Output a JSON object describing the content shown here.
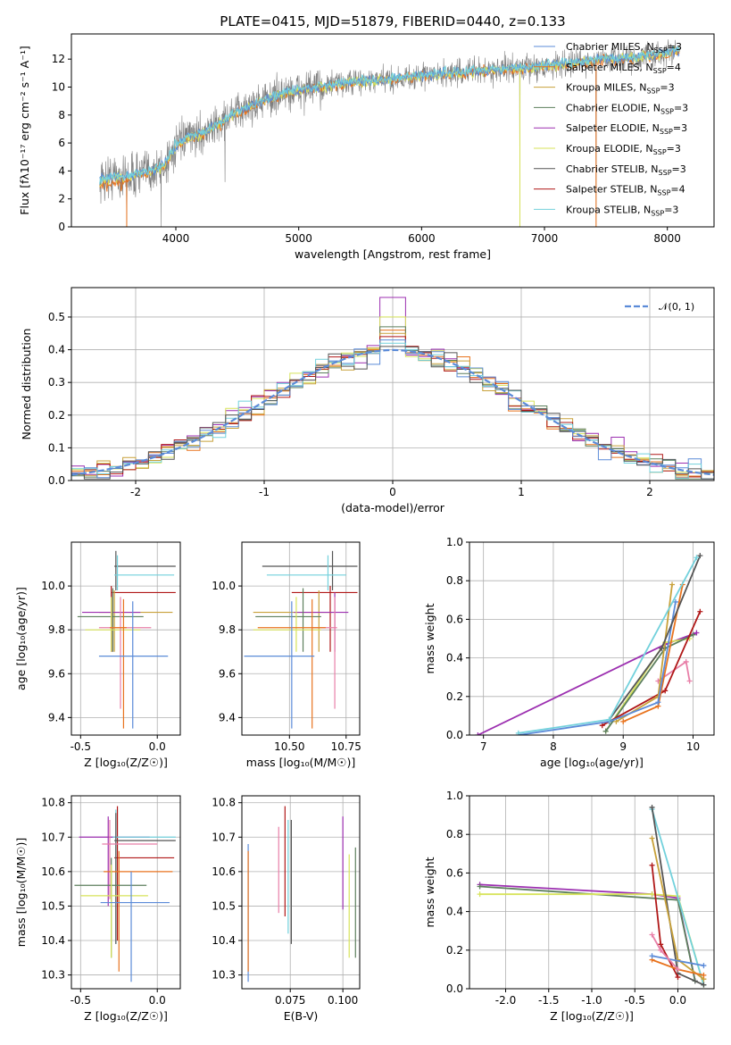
{
  "title": "PLATE=0415, MJD=51879, FIBERID=0440, z=0.133",
  "colors": {
    "Chabrier MILES": "#5b8bd8",
    "Salpeter MILES": "#e8731e",
    "Kroupa MILES": "#c8a13a",
    "Chabrier ELODIE": "#5d7f5d",
    "Salpeter ELODIE": "#9c2fb0",
    "Kroupa ELODIE": "#d7e35a",
    "Chabrier STELIB": "#555555",
    "Salpeter STELIB": "#b01818",
    "Kroupa STELIB": "#72d1dc",
    "data": "#7f7f7f",
    "pink": "#e87fa8",
    "norm": "#5b8bd8"
  },
  "chart_data": [
    {
      "type": "line",
      "name": "spectrum",
      "title": "PLATE=0415, MJD=51879, FIBERID=0440, z=0.133",
      "xlabel": "wavelength [Angstrom, rest frame]",
      "ylabel": "Flux [fλ10⁻¹⁷ erg cm⁻² s⁻¹ A⁻¹]",
      "xlim": [
        3150,
        8380
      ],
      "ylim": [
        0,
        13.8
      ],
      "xticks": [
        4000,
        5000,
        6000,
        7000,
        8000
      ],
      "yticks": [
        0,
        2,
        4,
        6,
        8,
        10,
        12
      ],
      "legend_loc": "right",
      "legend": [
        {
          "label": "Chabrier MILES, N_SSP=3",
          "html": "Chabrier MILES, N<tspan font-size='8' dy='3'>SSP</tspan><tspan dy='-3'>=3</tspan>"
        },
        {
          "label": "Salpeter MILES, N_SSP=4",
          "html": "Salpeter MILES, N<tspan font-size='8' dy='3'>SSP</tspan><tspan dy='-3'>=4</tspan>"
        },
        {
          "label": "Kroupa MILES, N_SSP=3",
          "html": "Kroupa MILES, N<tspan font-size='8' dy='3'>SSP</tspan><tspan dy='-3'>=3</tspan>"
        },
        {
          "label": "Chabrier ELODIE, N_SSP=3",
          "html": "Chabrier ELODIE, N<tspan font-size='8' dy='3'>SSP</tspan><tspan dy='-3'>=3</tspan>"
        },
        {
          "label": "Salpeter ELODIE, N_SSP=3",
          "html": "Salpeter ELODIE, N<tspan font-size='8' dy='3'>SSP</tspan><tspan dy='-3'>=3</tspan>"
        },
        {
          "label": "Kroupa ELODIE, N_SSP=3",
          "html": "Kroupa ELODIE, N<tspan font-size='8' dy='3'>SSP</tspan><tspan dy='-3'>=3</tspan>"
        },
        {
          "label": "Chabrier STELIB, N_SSP=3",
          "html": "Chabrier STELIB, N<tspan font-size='8' dy='3'>SSP</tspan><tspan dy='-3'>=3</tspan>"
        },
        {
          "label": "Salpeter STELIB, N_SSP=4",
          "html": "Salpeter STELIB, N<tspan font-size='8' dy='3'>SSP</tspan><tspan dy='-3'>=4</tspan>"
        },
        {
          "label": "Kroupa STELIB, N_SSP=3",
          "html": "Kroupa STELIB, N<tspan font-size='8' dy='3'>SSP</tspan><tspan dy='-3'>=3</tspan>"
        }
      ],
      "continuum": {
        "x": [
          3380,
          3500,
          3600,
          3700,
          3800,
          3900,
          4000,
          4100,
          4200,
          4300,
          4500,
          4700,
          4900,
          5100,
          5300,
          5500,
          5700,
          5900,
          6100,
          6300,
          6500,
          6700,
          6900,
          7100,
          7300,
          7500,
          7700,
          7900,
          8100
        ],
        "y": [
          3.3,
          3.6,
          3.5,
          3.8,
          4.0,
          4.3,
          5.8,
          6.4,
          6.6,
          7.1,
          8.2,
          9.0,
          9.6,
          9.9,
          10.2,
          10.4,
          10.5,
          10.7,
          10.9,
          11.0,
          11.2,
          11.3,
          11.4,
          11.6,
          11.8,
          12.0,
          12.1,
          12.3,
          12.6
        ]
      },
      "drops": {
        "x": [
          3600,
          3880,
          4400,
          6800,
          7420
        ],
        "y": [
          0,
          0,
          3.2,
          0,
          0
        ]
      }
    },
    {
      "type": "line",
      "name": "residual_histogram",
      "xlabel": "(data-model)/error",
      "ylabel": "Normed distribution",
      "xlim": [
        -2.5,
        2.5
      ],
      "ylim": [
        0,
        0.59
      ],
      "xticks": [
        -2,
        -1,
        0,
        1,
        2
      ],
      "yticks": [
        0.0,
        0.1,
        0.2,
        0.3,
        0.4,
        0.5
      ],
      "grid": true,
      "legend_loc": "top-right",
      "legend": [
        {
          "label": "𝒩(0, 1)"
        }
      ],
      "bin_width": 0.1,
      "series": [
        {
          "name": "Salpeter ELODIE",
          "peak": 0.56
        },
        {
          "name": "Kroupa ELODIE",
          "peak": 0.5
        },
        {
          "name": "Salpeter MILES",
          "peak": 0.46
        },
        {
          "name": "Chabrier ELODIE",
          "peak": 0.47
        },
        {
          "name": "Kroupa MILES",
          "peak": 0.45
        },
        {
          "name": "Salpeter STELIB",
          "peak": 0.44
        },
        {
          "name": "Chabrier MILES",
          "peak": 0.43
        },
        {
          "name": "Kroupa STELIB",
          "peak": 0.42
        },
        {
          "name": "Chabrier STELIB",
          "peak": 0.41
        }
      ]
    },
    {
      "type": "scatter",
      "name": "age_vs_Z",
      "xlabel": "Z [log₁₀(Z/Z☉)]",
      "ylabel": "age  [log₁₀(age/yr)]",
      "xlim": [
        -0.56,
        0.15
      ],
      "ylim": [
        9.32,
        10.2
      ],
      "xticks": [
        -0.5,
        0.0
      ],
      "yticks": [
        9.4,
        9.6,
        9.8,
        10.0
      ],
      "grid": true,
      "points": [
        {
          "c": "Chabrier STELIB",
          "x": -0.27,
          "y": 10.09,
          "xl": -0.28,
          "xh": 0.12,
          "yl": 9.98,
          "yh": 10.16
        },
        {
          "c": "Kroupa STELIB",
          "x": -0.26,
          "y": 10.05,
          "xl": -0.28,
          "xh": 0.11,
          "yl": 9.98,
          "yh": 10.14
        },
        {
          "c": "Salpeter STELIB",
          "x": -0.3,
          "y": 9.97,
          "xl": -0.3,
          "xh": 0.12,
          "yl": 9.7,
          "yh": 10.0
        },
        {
          "c": "Kroupa MILES",
          "x": -0.28,
          "y": 9.88,
          "xl": -0.38,
          "xh": 0.1,
          "yl": 9.7,
          "yh": 9.98
        },
        {
          "c": "Salpeter ELODIE",
          "x": -0.29,
          "y": 9.88,
          "xl": -0.49,
          "xh": -0.11,
          "yl": 9.7,
          "yh": 9.97
        },
        {
          "c": "Chabrier ELODIE",
          "x": -0.29,
          "y": 9.86,
          "xl": -0.52,
          "xh": -0.09,
          "yl": 9.7,
          "yh": 9.99
        },
        {
          "c": "Kroupa ELODIE",
          "x": -0.3,
          "y": 9.8,
          "xl": -0.47,
          "xh": -0.11,
          "yl": 9.7,
          "yh": 9.95
        },
        {
          "c": "pink",
          "x": -0.24,
          "y": 9.81,
          "xl": -0.38,
          "xh": -0.04,
          "yl": 9.44,
          "yh": 9.95
        },
        {
          "c": "Salpeter MILES",
          "x": -0.22,
          "y": 9.81,
          "xl": -0.31,
          "xh": -0.2,
          "yl": 9.35,
          "yh": 9.94
        },
        {
          "c": "Chabrier MILES",
          "x": -0.16,
          "y": 9.68,
          "xl": -0.38,
          "xh": 0.07,
          "yl": 9.35,
          "yh": 9.93
        }
      ]
    },
    {
      "type": "scatter",
      "name": "age_vs_mass",
      "xlabel": "mass [log₁₀(M/M☉)]",
      "xlim": [
        10.29,
        10.81
      ],
      "ylim": [
        9.32,
        10.2
      ],
      "xticks": [
        10.5,
        10.75
      ],
      "yticks": [
        9.4,
        9.6,
        9.8,
        10.0
      ],
      "grid": true,
      "points": [
        {
          "c": "Chabrier STELIB",
          "x": 10.69,
          "y": 10.09,
          "xl": 10.38,
          "xh": 10.8,
          "yl": 9.98,
          "yh": 10.16
        },
        {
          "c": "Kroupa STELIB",
          "x": 10.67,
          "y": 10.05,
          "xl": 10.4,
          "xh": 10.75,
          "yl": 9.98,
          "yh": 10.14
        },
        {
          "c": "Salpeter STELIB",
          "x": 10.68,
          "y": 9.97,
          "xl": 10.51,
          "xh": 10.8,
          "yl": 9.7,
          "yh": 10.0
        },
        {
          "c": "Kroupa MILES",
          "x": 10.63,
          "y": 9.88,
          "xl": 10.34,
          "xh": 10.69,
          "yl": 9.7,
          "yh": 9.98
        },
        {
          "c": "Salpeter ELODIE",
          "x": 10.7,
          "y": 9.88,
          "xl": 10.52,
          "xh": 10.76,
          "yl": 9.7,
          "yh": 9.97
        },
        {
          "c": "Chabrier ELODIE",
          "x": 10.56,
          "y": 9.86,
          "xl": 10.35,
          "xh": 10.64,
          "yl": 9.7,
          "yh": 9.99
        },
        {
          "c": "Kroupa ELODIE",
          "x": 10.53,
          "y": 9.8,
          "xl": 10.34,
          "xh": 10.64,
          "yl": 9.7,
          "yh": 9.95
        },
        {
          "c": "pink",
          "x": 10.7,
          "y": 9.81,
          "xl": 10.6,
          "xh": 10.71,
          "yl": 9.44,
          "yh": 9.95
        },
        {
          "c": "Salpeter MILES",
          "x": 10.6,
          "y": 9.81,
          "xl": 10.36,
          "xh": 10.66,
          "yl": 9.35,
          "yh": 9.94
        },
        {
          "c": "Chabrier MILES",
          "x": 10.51,
          "y": 9.68,
          "xl": 10.3,
          "xh": 10.61,
          "yl": 9.35,
          "yh": 9.93
        }
      ]
    },
    {
      "type": "line",
      "name": "mass_weight_vs_age",
      "xlabel": "age  [log₁₀(age/yr)]",
      "ylabel": "mass weight",
      "xlim": [
        6.8,
        10.3
      ],
      "ylim": [
        0,
        1.0
      ],
      "xticks": [
        7,
        8,
        9,
        10
      ],
      "yticks": [
        0.0,
        0.2,
        0.4,
        0.6,
        0.8,
        1.0
      ],
      "grid": true,
      "series": [
        {
          "name": "Salpeter ELODIE",
          "x": [
            6.92,
            9.6,
            10.05
          ],
          "y": [
            0.0,
            0.47,
            0.53
          ]
        },
        {
          "name": "Kroupa ELODIE",
          "x": [
            8.75,
            9.6,
            9.95
          ],
          "y": [
            0.02,
            0.48,
            0.5
          ]
        },
        {
          "name": "Chabrier ELODIE",
          "x": [
            8.75,
            9.6,
            10.0
          ],
          "y": [
            0.02,
            0.45,
            0.52
          ]
        },
        {
          "name": "pink",
          "x": [
            9.5,
            9.9,
            9.95
          ],
          "y": [
            0.28,
            0.38,
            0.28
          ]
        },
        {
          "name": "Salpeter STELIB",
          "x": [
            8.7,
            9.6,
            10.1
          ],
          "y": [
            0.05,
            0.23,
            0.64
          ]
        },
        {
          "name": "Kroupa MILES",
          "x": [
            8.9,
            9.5,
            9.7
          ],
          "y": [
            0.07,
            0.2,
            0.78
          ]
        },
        {
          "name": "Salpeter MILES",
          "x": [
            9.0,
            9.5,
            9.85
          ],
          "y": [
            0.07,
            0.15,
            0.78
          ]
        },
        {
          "name": "Chabrier MILES",
          "x": [
            7.5,
            8.8,
            9.5,
            9.75
          ],
          "y": [
            0.0,
            0.07,
            0.17,
            0.69
          ]
        },
        {
          "name": "Chabrier STELIB",
          "x": [
            8.8,
            9.55,
            10.1
          ],
          "y": [
            0.08,
            0.45,
            0.93
          ]
        },
        {
          "name": "Kroupa STELIB",
          "x": [
            7.5,
            8.8,
            10.05
          ],
          "y": [
            0.01,
            0.08,
            0.92
          ]
        }
      ]
    },
    {
      "type": "scatter",
      "name": "mass_vs_Z",
      "xlabel": "Z [log₁₀(Z/Z☉)]",
      "ylabel": "mass [log₁₀(M/M☉)]",
      "xlim": [
        -0.56,
        0.15
      ],
      "ylim": [
        10.26,
        10.82
      ],
      "xticks": [
        -0.5,
        0.0
      ],
      "yticks": [
        10.3,
        10.4,
        10.5,
        10.6,
        10.7,
        10.8
      ],
      "grid": true,
      "points": [
        {
          "c": "Salpeter ELODIE",
          "x": -0.32,
          "y": 10.7,
          "xl": -0.51,
          "xh": -0.05,
          "yl": 10.5,
          "yh": 10.76
        },
        {
          "c": "Salpeter STELIB",
          "x": -0.26,
          "y": 10.64,
          "xl": -0.28,
          "xh": 0.11,
          "yl": 10.4,
          "yh": 10.79
        },
        {
          "c": "Kroupa STELIB",
          "x": -0.27,
          "y": 10.7,
          "xl": -0.29,
          "xh": 0.12,
          "yl": 10.39,
          "yh": 10.78
        },
        {
          "c": "Chabrier STELIB",
          "x": -0.27,
          "y": 10.69,
          "xl": -0.28,
          "xh": 0.12,
          "yl": 10.39,
          "yh": 10.77
        },
        {
          "c": "pink",
          "x": -0.31,
          "y": 10.68,
          "xl": -0.36,
          "xh": 0.0,
          "yl": 10.52,
          "yh": 10.75
        },
        {
          "c": "Salpeter MILES",
          "x": -0.25,
          "y": 10.6,
          "xl": -0.35,
          "xh": 0.1,
          "yl": 10.31,
          "yh": 10.66
        },
        {
          "c": "Chabrier ELODIE",
          "x": -0.3,
          "y": 10.56,
          "xl": -0.54,
          "xh": -0.07,
          "yl": 10.35,
          "yh": 10.64
        },
        {
          "c": "Kroupa ELODIE",
          "x": -0.3,
          "y": 10.53,
          "xl": -0.5,
          "xh": -0.06,
          "yl": 10.35,
          "yh": 10.62
        },
        {
          "c": "Chabrier MILES",
          "x": -0.17,
          "y": 10.51,
          "xl": -0.37,
          "xh": 0.08,
          "yl": 10.28,
          "yh": 10.6
        }
      ]
    },
    {
      "type": "scatter",
      "name": "mass_vs_EBV",
      "xlabel": "E(B-V)",
      "xlim": [
        0.052,
        0.108
      ],
      "ylim": [
        10.26,
        10.82
      ],
      "xticks": [
        0.075,
        0.1
      ],
      "yticks": [
        10.3,
        10.4,
        10.5,
        10.6,
        10.7,
        10.8
      ],
      "grid": true,
      "points": [
        {
          "c": "Chabrier MILES",
          "x": 0.055,
          "y": 10.5,
          "yl": 10.28,
          "yh": 10.68
        },
        {
          "c": "Salpeter MILES",
          "x": 0.055,
          "y": 10.5,
          "yl": 10.31,
          "yh": 10.66
        },
        {
          "c": "pink",
          "x": 0.0695,
          "y": 10.6,
          "yl": 10.48,
          "yh": 10.73
        },
        {
          "c": "Salpeter STELIB",
          "x": 0.0725,
          "y": 10.6,
          "yl": 10.47,
          "yh": 10.79
        },
        {
          "c": "Kroupa STELIB",
          "x": 0.074,
          "y": 10.6,
          "yl": 10.42,
          "yh": 10.75
        },
        {
          "c": "Chabrier STELIB",
          "x": 0.0755,
          "y": 10.6,
          "yl": 10.39,
          "yh": 10.75
        },
        {
          "c": "Salpeter ELODIE",
          "x": 0.1,
          "y": 10.6,
          "yl": 10.49,
          "yh": 10.76
        },
        {
          "c": "Kroupa ELODIE",
          "x": 0.103,
          "y": 10.5,
          "yl": 10.35,
          "yh": 10.65
        },
        {
          "c": "Chabrier ELODIE",
          "x": 0.106,
          "y": 10.5,
          "yl": 10.35,
          "yh": 10.67
        }
      ]
    },
    {
      "type": "line",
      "name": "mass_weight_vs_Z",
      "xlabel": "Z [log₁₀(Z/Z☉)]",
      "ylabel": "mass weight",
      "xlim": [
        -2.42,
        0.42
      ],
      "ylim": [
        0,
        1.0
      ],
      "xticks": [
        -2.0,
        -1.5,
        -1.0,
        -0.5,
        0.0
      ],
      "yticks": [
        0.0,
        0.2,
        0.4,
        0.6,
        0.8,
        1.0
      ],
      "grid": true,
      "series": [
        {
          "name": "Salpeter ELODIE",
          "x": [
            -2.3,
            -0.3,
            0.0,
            0.2
          ],
          "y": [
            0.54,
            0.49,
            0.47,
            0.04
          ]
        },
        {
          "name": "Chabrier ELODIE",
          "x": [
            -2.3,
            0.0,
            0.2
          ],
          "y": [
            0.53,
            0.46,
            0.04
          ]
        },
        {
          "name": "Kroupa ELODIE",
          "x": [
            -2.3,
            -0.3,
            0.0,
            0.3
          ],
          "y": [
            0.49,
            0.49,
            0.48,
            0.02
          ]
        },
        {
          "name": "Kroupa STELIB",
          "x": [
            -0.3,
            0.3
          ],
          "y": [
            0.93,
            0.02
          ]
        },
        {
          "name": "Chabrier STELIB",
          "x": [
            -0.3,
            0.0,
            0.3
          ],
          "y": [
            0.94,
            0.08,
            0.02
          ]
        },
        {
          "name": "Kroupa MILES",
          "x": [
            -0.3,
            0.0,
            0.3
          ],
          "y": [
            0.78,
            0.15,
            0.05
          ]
        },
        {
          "name": "Salpeter STELIB",
          "x": [
            -0.3,
            -0.2,
            0.0
          ],
          "y": [
            0.64,
            0.23,
            0.06
          ]
        },
        {
          "name": "Salpeter MILES",
          "x": [
            -0.3,
            0.0,
            0.3
          ],
          "y": [
            0.15,
            0.1,
            0.07
          ]
        },
        {
          "name": "Chabrier MILES",
          "x": [
            -0.3,
            0.3
          ],
          "y": [
            0.17,
            0.12
          ]
        },
        {
          "name": "pink",
          "x": [
            -0.3,
            -0.2,
            0.0
          ],
          "y": [
            0.28,
            0.2,
            0.1
          ]
        }
      ]
    }
  ]
}
